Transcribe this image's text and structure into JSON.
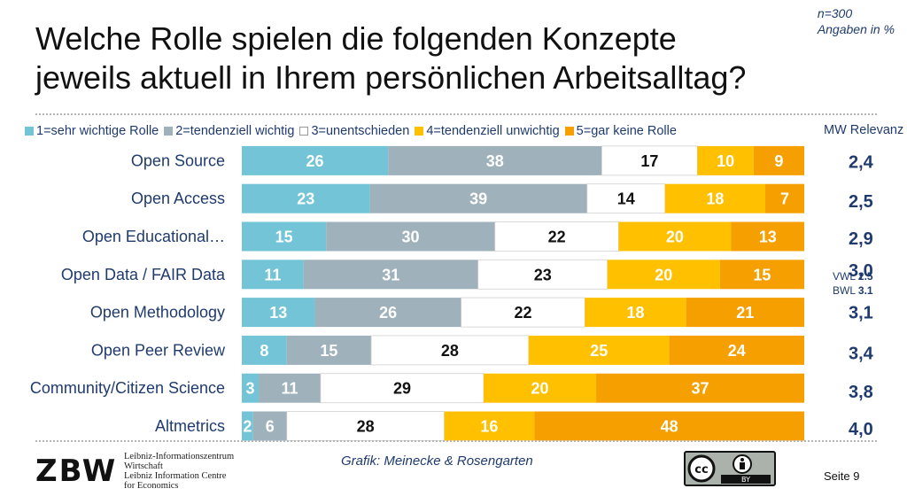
{
  "title": {
    "line1": "Welche Rolle spielen die folgenden Konzepte",
    "line2": "jeweils aktuell in Ihrem persönlichen Arbeitsalltag?"
  },
  "meta": {
    "n": "n=300",
    "unit": "Angaben in %"
  },
  "legend": [
    {
      "label": "1=sehr wichtige Rolle",
      "color": "#72c4d6"
    },
    {
      "label": "2=tendenziell wichtig",
      "color": "#9fb1bb"
    },
    {
      "label": "3=unentschieden",
      "color": "#ffffff"
    },
    {
      "label": "4=tendenziell unwichtig",
      "color": "#ffc000"
    },
    {
      "label": "5=gar keine Rolle",
      "color": "#f5a000"
    }
  ],
  "mw_header": "MW Relevanz",
  "chart_data": {
    "type": "bar",
    "orientation": "horizontal",
    "stacked": true,
    "unit": "%",
    "categories": [
      "Open Source",
      "Open Access",
      "Open Educational…",
      "Open Data / FAIR Data",
      "Open Methodology",
      "Open Peer Review",
      "Community/Citizen Science",
      "Altmetrics"
    ],
    "series": [
      {
        "name": "1=sehr wichtige Rolle",
        "color": "#72c4d6",
        "values": [
          26,
          23,
          15,
          11,
          13,
          8,
          3,
          2
        ]
      },
      {
        "name": "2=tendenziell wichtig",
        "color": "#9fb1bb",
        "values": [
          38,
          39,
          30,
          31,
          26,
          15,
          11,
          6
        ]
      },
      {
        "name": "3=unentschieden",
        "color": "#ffffff",
        "values": [
          17,
          14,
          22,
          23,
          22,
          28,
          29,
          28
        ]
      },
      {
        "name": "4=tendenziell unwichtig",
        "color": "#ffc000",
        "values": [
          10,
          18,
          20,
          20,
          18,
          25,
          20,
          16
        ]
      },
      {
        "name": "5=gar keine Rolle",
        "color": "#f5a000",
        "values": [
          9,
          7,
          13,
          15,
          21,
          24,
          37,
          48
        ]
      }
    ],
    "mw_relevanz": [
      "2,4",
      "2,5",
      "2,9",
      "3,0",
      "3,1",
      "3,4",
      "3,8",
      "4,0"
    ]
  },
  "note": {
    "vwl_label": "VWL",
    "vwl_value": "2.5",
    "bwl_label": "BWL",
    "bwl_value": "3.1"
  },
  "footer": {
    "logo": "ZBW",
    "org_lines": [
      "Leibniz-Informationszentrum",
      "Wirtschaft",
      "Leibniz Information Centre",
      "for Economics"
    ],
    "credit": "Grafik: Meinecke & Rosengarten",
    "license_badge": "BY",
    "page": "Seite 9"
  }
}
